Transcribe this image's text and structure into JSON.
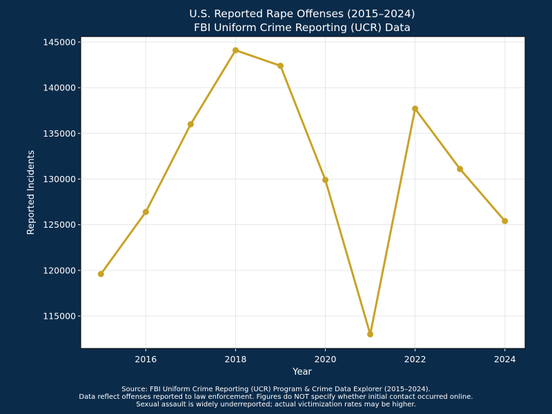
{
  "chart_data": {
    "type": "line",
    "title": "U.S. Reported Rape Offenses (2015–2024)",
    "subtitle": "FBI Uniform Crime Reporting (UCR) Data",
    "xlabel": "Year",
    "ylabel": "Reported Incidents",
    "x": [
      2015,
      2016,
      2017,
      2018,
      2019,
      2020,
      2021,
      2022,
      2023,
      2024
    ],
    "series": [
      {
        "values": [
          119600,
          126400,
          136000,
          144100,
          142400,
          129900,
          113000,
          137700,
          131100,
          125400
        ]
      }
    ],
    "xlim": [
      2014.55,
      2024.45
    ],
    "ylim": [
      111450,
      145600
    ],
    "xticks": [
      2016,
      2018,
      2020,
      2022,
      2024
    ],
    "yticks": [
      115000,
      120000,
      125000,
      130000,
      135000,
      140000,
      145000
    ],
    "grid": true,
    "legend": "none",
    "colors": {
      "background": "#0b2b4a",
      "plot_background": "#ffffff",
      "line": "#c9a227",
      "grid": "#e3e6ea",
      "text": "#ffffff"
    }
  },
  "footnotes": [
    "Source: FBI Uniform Crime Reporting (UCR) Program & Crime Data Explorer (2015–2024).",
    "Data reflect offenses reported to law enforcement. Figures do NOT specify whether initial contact occurred online.",
    "Sexual assault is widely underreported; actual victimization rates may be higher."
  ]
}
